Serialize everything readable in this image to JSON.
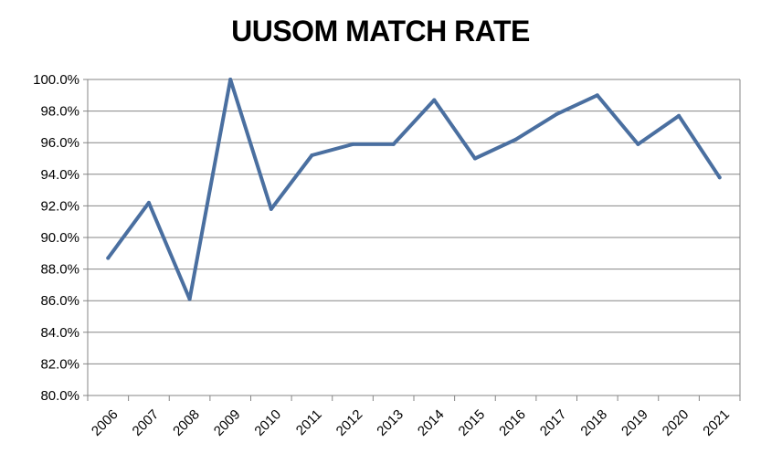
{
  "chart_data": {
    "type": "line",
    "title": "UUSOM MATCH RATE",
    "xlabel": "",
    "ylabel": "",
    "categories": [
      "2006",
      "2007",
      "2008",
      "2009",
      "2010",
      "2011",
      "2012",
      "2013",
      "2014",
      "2015",
      "2016",
      "2017",
      "2018",
      "2019",
      "2020",
      "2021"
    ],
    "series": [
      {
        "values": [
          88.7,
          92.2,
          86.1,
          100.0,
          91.8,
          95.2,
          95.9,
          95.9,
          98.7,
          95.0,
          96.2,
          97.8,
          99.0,
          95.9,
          97.7,
          93.8
        ]
      }
    ],
    "ylim": [
      80,
      100
    ],
    "yticks": [
      "80.0%",
      "82.0%",
      "84.0%",
      "86.0%",
      "88.0%",
      "90.0%",
      "92.0%",
      "94.0%",
      "96.0%",
      "98.0%",
      "100.0%"
    ],
    "grid": true,
    "legend": "none",
    "colors": {
      "line": "#4a6fa0",
      "grid": "#868686",
      "axis": "#868686"
    }
  }
}
